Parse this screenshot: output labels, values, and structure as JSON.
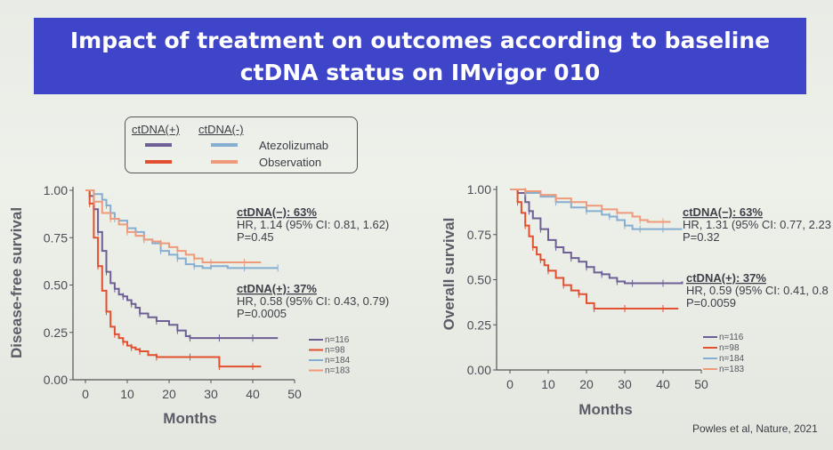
{
  "slide_title": "Impact of treatment on outcomes according to baseline ctDNA status on IMvigor 010",
  "legend": {
    "header_pos": "ctDNA(+)",
    "header_neg": "ctDNA(-)",
    "atezolizumab": "Atezolizumab",
    "observation": "Observation"
  },
  "colors": {
    "pos_atezo": "#6e5f95",
    "pos_obs": "#e25030",
    "neg_atezo": "#86aed1",
    "neg_obs": "#ef9a7a"
  },
  "citation": "Powles et al, Nature, 2021",
  "chart_data": [
    {
      "type": "line",
      "ylabel": "Disease-free survival",
      "xlabel": "Months",
      "xlim": [
        0,
        50
      ],
      "ylim": [
        0,
        1
      ],
      "xticks": [
        "0",
        "10",
        "20",
        "30",
        "40",
        "50"
      ],
      "yticks": [
        "0.00",
        "0.25",
        "0.50",
        "0.75",
        "1.00"
      ],
      "annotations": [
        {
          "head": "ctDNA(−): 63%",
          "hr": "HR, 1.14 (95% CI: 0.81, 1.62)",
          "p": "P=0.45"
        },
        {
          "head": "ctDNA(+): 37%",
          "hr": "HR, 0.58 (95% CI: 0.43, 0.79)",
          "p": "P=0.0005"
        }
      ],
      "n_labels": [
        "n=116",
        "n=98",
        "n=184",
        "n=183"
      ],
      "series": [
        {
          "group": "ctDNA(+) Atezolizumab",
          "color": "#6e5f95",
          "x": [
            0,
            1,
            2,
            3,
            4,
            5,
            6,
            7,
            8,
            9,
            10,
            11,
            12,
            13,
            15,
            17,
            20,
            22,
            24,
            25,
            28,
            32,
            36,
            40,
            46
          ],
          "y": [
            1.0,
            0.97,
            0.9,
            0.78,
            0.68,
            0.57,
            0.51,
            0.48,
            0.45,
            0.44,
            0.42,
            0.4,
            0.38,
            0.35,
            0.33,
            0.31,
            0.29,
            0.26,
            0.23,
            0.22,
            0.22,
            0.22,
            0.22,
            0.22,
            0.22
          ]
        },
        {
          "group": "ctDNA(+) Observation",
          "color": "#e25030",
          "x": [
            0,
            1,
            2,
            3,
            4,
            5,
            6,
            7,
            8,
            9,
            10,
            11,
            12,
            13,
            15,
            17,
            20,
            25,
            30,
            32,
            36,
            40,
            42
          ],
          "y": [
            1.0,
            0.93,
            0.75,
            0.6,
            0.47,
            0.36,
            0.28,
            0.24,
            0.22,
            0.2,
            0.18,
            0.17,
            0.16,
            0.15,
            0.13,
            0.12,
            0.12,
            0.12,
            0.12,
            0.07,
            0.07,
            0.07,
            0.07
          ]
        },
        {
          "group": "ctDNA(−) Atezolizumab",
          "color": "#86aed1",
          "x": [
            0,
            2,
            4,
            5,
            6,
            7,
            8,
            10,
            12,
            14,
            16,
            18,
            20,
            22,
            24,
            26,
            28,
            30,
            34,
            38,
            42,
            46
          ],
          "y": [
            1.0,
            0.98,
            0.95,
            0.92,
            0.88,
            0.85,
            0.84,
            0.8,
            0.78,
            0.74,
            0.72,
            0.68,
            0.66,
            0.64,
            0.61,
            0.6,
            0.59,
            0.6,
            0.59,
            0.59,
            0.59,
            0.59
          ]
        },
        {
          "group": "ctDNA(−) Observation",
          "color": "#ef9a7a",
          "x": [
            0,
            2,
            4,
            6,
            8,
            10,
            12,
            14,
            16,
            18,
            20,
            22,
            24,
            26,
            28,
            30,
            34,
            38,
            42
          ],
          "y": [
            1.0,
            0.94,
            0.88,
            0.85,
            0.82,
            0.78,
            0.76,
            0.74,
            0.73,
            0.72,
            0.7,
            0.68,
            0.66,
            0.64,
            0.62,
            0.62,
            0.62,
            0.62,
            0.62
          ]
        }
      ]
    },
    {
      "type": "line",
      "ylabel": "Overall survival",
      "xlabel": "Months",
      "xlim": [
        0,
        50
      ],
      "ylim": [
        0,
        1
      ],
      "xticks": [
        "0",
        "10",
        "20",
        "30",
        "40",
        "50"
      ],
      "yticks": [
        "0.00",
        "0.25",
        "0.50",
        "0.75",
        "1.00"
      ],
      "annotations": [
        {
          "head": "ctDNA(−): 63%",
          "hr": "HR, 1.31 (95% CI: 0.77, 2.23",
          "p": "P=0.32"
        },
        {
          "head": "ctDNA(+): 37%",
          "hr": "HR, 0.59 (95% CI: 0.41, 0.8",
          "p": "P=0.0059"
        }
      ],
      "n_labels": [
        "n=116",
        "n=98",
        "n=184",
        "n=183"
      ],
      "series": [
        {
          "group": "ctDNA(+) Atezolizumab",
          "color": "#6e5f95",
          "x": [
            0,
            2,
            4,
            5,
            6,
            8,
            10,
            12,
            14,
            16,
            18,
            20,
            22,
            24,
            26,
            28,
            30,
            32,
            36,
            40,
            45
          ],
          "y": [
            1.0,
            0.98,
            0.93,
            0.88,
            0.84,
            0.78,
            0.72,
            0.68,
            0.65,
            0.62,
            0.6,
            0.57,
            0.54,
            0.53,
            0.51,
            0.49,
            0.48,
            0.48,
            0.48,
            0.48,
            0.49
          ]
        },
        {
          "group": "ctDNA(+) Observation",
          "color": "#e25030",
          "x": [
            0,
            2,
            3,
            4,
            5,
            6,
            7,
            8,
            9,
            10,
            12,
            14,
            16,
            18,
            20,
            22,
            25,
            30,
            35,
            40,
            44
          ],
          "y": [
            1.0,
            0.93,
            0.87,
            0.8,
            0.74,
            0.68,
            0.64,
            0.61,
            0.58,
            0.55,
            0.51,
            0.47,
            0.44,
            0.42,
            0.37,
            0.34,
            0.34,
            0.34,
            0.34,
            0.34,
            0.34
          ]
        },
        {
          "group": "ctDNA(−) Atezolizumab",
          "color": "#86aed1",
          "x": [
            0,
            4,
            8,
            12,
            16,
            20,
            24,
            26,
            28,
            30,
            32,
            34,
            36,
            40,
            45
          ],
          "y": [
            1.0,
            0.98,
            0.96,
            0.93,
            0.9,
            0.88,
            0.86,
            0.85,
            0.83,
            0.8,
            0.78,
            0.78,
            0.78,
            0.78,
            0.78
          ]
        },
        {
          "group": "ctDNA(−) Observation",
          "color": "#ef9a7a",
          "x": [
            0,
            4,
            8,
            12,
            16,
            20,
            24,
            28,
            32,
            34,
            36,
            40,
            42
          ],
          "y": [
            1.0,
            0.99,
            0.97,
            0.95,
            0.93,
            0.91,
            0.89,
            0.87,
            0.85,
            0.83,
            0.82,
            0.82,
            0.82
          ]
        }
      ]
    }
  ]
}
